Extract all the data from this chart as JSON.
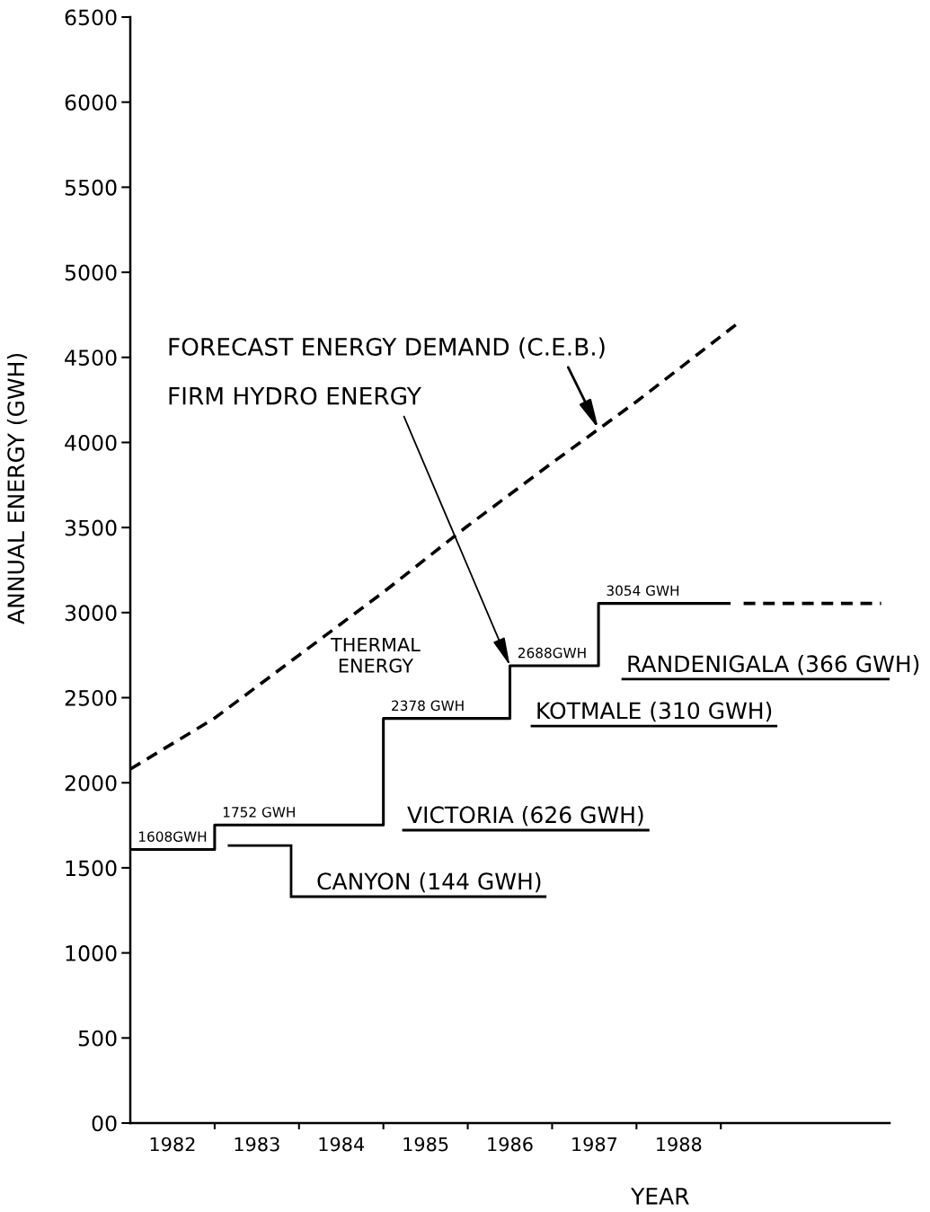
{
  "chart_data": {
    "type": "line",
    "xlabel": "YEAR",
    "ylabel": "ANNUAL ENERGY (GWH)",
    "xlim": [
      1982,
      1991
    ],
    "ylim": [
      0,
      6500
    ],
    "xticks": [
      {
        "value": 1982.5,
        "label": "1982"
      },
      {
        "value": 1983.5,
        "label": "1983"
      },
      {
        "value": 1984.5,
        "label": "1984"
      },
      {
        "value": 1985.5,
        "label": "1985"
      },
      {
        "value": 1986.5,
        "label": "1986"
      },
      {
        "value": 1987.5,
        "label": "1987"
      },
      {
        "value": 1988.5,
        "label": "1988"
      },
      {
        "value": 1983,
        "label": null
      },
      {
        "value": 1984,
        "label": null
      },
      {
        "value": 1985,
        "label": null
      },
      {
        "value": 1986,
        "label": null
      },
      {
        "value": 1987,
        "label": null
      },
      {
        "value": 1988,
        "label": null
      },
      {
        "value": 1989,
        "label": null
      }
    ],
    "yticks": [
      {
        "value": 0,
        "label": "00"
      },
      500,
      1000,
      1500,
      2000,
      2500,
      3000,
      3500,
      4000,
      4500,
      5000,
      5500,
      6000,
      6500
    ],
    "series": [
      {
        "line_style": "dashed",
        "color": "#000000",
        "x": [
          1982,
          1983,
          1984,
          1985,
          1986,
          1987,
          1988,
          1989.2
        ],
        "values": [
          2080,
          2380,
          2750,
          3120,
          3510,
          3880,
          4240,
          4700
        ]
      },
      {
        "type": "step",
        "line_style": "solid",
        "color": "#000000",
        "x": [
          1982,
          1983,
          1985,
          1986.5,
          1987.55,
          1989.1
        ],
        "values": [
          1608,
          1752,
          2378,
          2688,
          3054,
          3054
        ],
        "value_labels": [
          "1608GWH",
          "1752 GWH",
          "2378 GWH",
          "2688GWH",
          "3054 GWH",
          null
        ]
      },
      {
        "type": "line",
        "line_style": "dashed",
        "color": "#000000",
        "x": [
          1989.27,
          1990.9
        ],
        "values": [
          3054,
          3054
        ]
      }
    ],
    "annotations": [
      {
        "text": "FORECAST ENERGY DEMAND (C.E.B.)",
        "x": 1987.55,
        "y": 4080
      },
      {
        "text": "FIRM HYDRO ENERGY",
        "x": 1986.5,
        "y": 2688
      },
      "THERMAL\nENERGY",
      "CANYON (144 GWH)",
      "VICTORIA (626 GWH)",
      "KOTMALE (310 GWH)",
      "RANDENIGALA (366 GWH)"
    ]
  }
}
